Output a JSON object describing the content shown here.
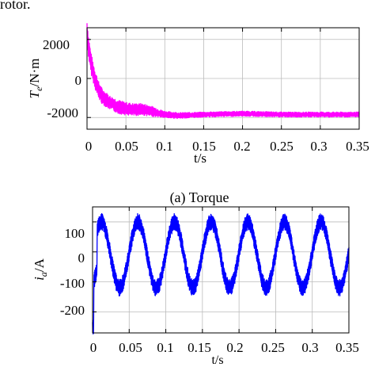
{
  "header_fragment": "rotor.",
  "chart_data": [
    {
      "type": "line",
      "caption": "",
      "xlabel": "t/s",
      "ylabel_main": "T",
      "ylabel_sub": "e",
      "ylabel_rest": "/N·m",
      "xlim": [
        0,
        0.35
      ],
      "ylim": [
        -2600,
        2600
      ],
      "xticks": [
        "0",
        "0.05",
        "0.1",
        "0.15",
        "0.2",
        "0.25",
        "0.3",
        "0.35"
      ],
      "yticks": [
        "2000",
        "0",
        "-2000"
      ],
      "ytick_values": [
        2000,
        0,
        -2000
      ],
      "grid": true,
      "color": "#ff00ff",
      "series": [
        {
          "x": [
            0,
            0.002,
            0.005,
            0.01,
            0.015,
            0.02,
            0.03,
            0.04,
            0.05,
            0.06,
            0.07,
            0.08,
            0.09,
            0.1,
            0.12,
            0.15,
            0.2,
            0.25,
            0.3,
            0.35
          ],
          "y": [
            2400,
            1600,
            800,
            0,
            -600,
            -950,
            -1250,
            -1450,
            -1550,
            -1600,
            -1580,
            -1650,
            -1750,
            -1850,
            -1900,
            -1850,
            -1800,
            -1850,
            -1850,
            -1850
          ],
          "ripple": [
            600,
            600,
            550,
            500,
            450,
            400,
            350,
            350,
            330,
            320,
            300,
            280,
            220,
            170,
            150,
            130,
            130,
            130,
            130,
            130
          ]
        }
      ]
    },
    {
      "type": "line",
      "caption": "(a) Torque",
      "xlabel": "t/s",
      "ylabel_main": "i",
      "ylabel_sub": "a",
      "ylabel_rest": "/A",
      "xlim": [
        0,
        0.35
      ],
      "ylim": [
        -270,
        150
      ],
      "xticks": [
        "0",
        "0.05",
        "0.1",
        "0.15",
        "0.2",
        "0.25",
        "0.3",
        "0.35"
      ],
      "yticks": [
        "100",
        "0",
        "-100",
        "-200"
      ],
      "ytick_values": [
        100,
        0,
        -100,
        -200
      ],
      "grid": true,
      "color": "#0000ff",
      "series": [
        {
          "offset": -10,
          "amplitude": 110,
          "period": 0.05,
          "phase_peak_t": 0.062,
          "ripple": 28,
          "start_spike": -250
        }
      ]
    }
  ]
}
